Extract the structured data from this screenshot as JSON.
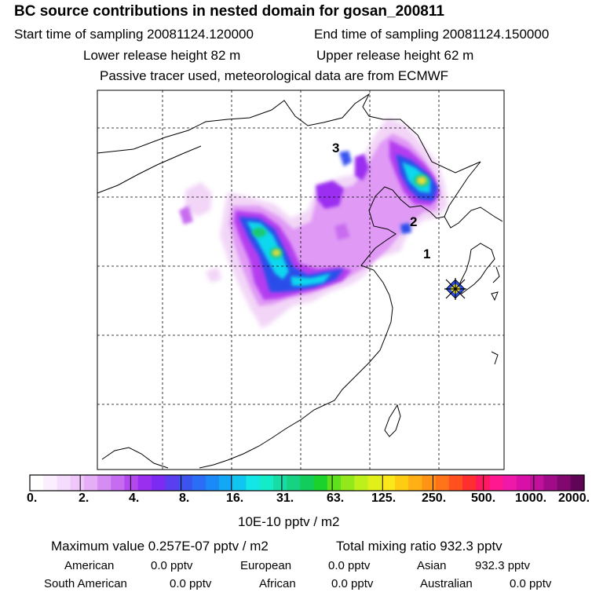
{
  "header": {
    "title": "BC  source contributions in nested domain for gosan_200811",
    "start_label": "Start time of sampling 20081124.120000",
    "end_label": "End time of sampling 20081124.150000",
    "lower_label": "Lower release height   82 m",
    "upper_label": "Upper release height   62 m",
    "info_label": "Passive tracer used, meteorological data are from ECMWF"
  },
  "map": {
    "markers": [
      "1",
      "2",
      "3"
    ],
    "colors": {
      "very_low": "#f2d5f7",
      "low": "#e09af5",
      "violet": "#b43cf0",
      "blue": "#2b4dea",
      "cyan": "#10d8ee",
      "green": "#1ec86e",
      "yellow": "#f4e41a"
    }
  },
  "legend": {
    "tick_labels": [
      "0.",
      "2.",
      "4.",
      "8.",
      "16.",
      "31.",
      "63.",
      "125.",
      "250.",
      "500.",
      "1000.",
      "2000."
    ],
    "colors": [
      "#ffffff",
      "#fbeefe",
      "#f6dcfc",
      "#f0c7fa",
      "#e6aef7",
      "#d58cf3",
      "#c56cf0",
      "#b248ee",
      "#9b2ff0",
      "#7c2cf2",
      "#5b3ef0",
      "#3b54f0",
      "#2b6df4",
      "#1b8af8",
      "#12a8f5",
      "#10c6ee",
      "#14e6e6",
      "#14ecc8",
      "#18dca6",
      "#16d282",
      "#12cc5c",
      "#1bd22c",
      "#5ee01c",
      "#92e81a",
      "#bef01c",
      "#e0f018",
      "#fce81a",
      "#ffcc14",
      "#ffb014",
      "#ff9414",
      "#ff7418",
      "#ff501e",
      "#ff2e30",
      "#ff1860",
      "#ff1890",
      "#f018a8",
      "#d810a8",
      "#c0109c",
      "#a00c88",
      "#80086e",
      "#600458"
    ],
    "units": "10E-10 pptv / m2"
  },
  "footer": {
    "max_value": "Maximum value  0.257E-07 pptv / m2",
    "total_mixing": "Total mixing ratio      932.3 pptv",
    "american_label": "American",
    "american_value": "0.0 pptv",
    "european_label": "European",
    "european_value": "0.0 pptv",
    "asian_label": "Asian",
    "asian_value": "932.3 pptv",
    "south_american_label": "South American",
    "south_american_value": "0.0 pptv",
    "african_label": "African",
    "african_value": "0.0 pptv",
    "australian_label": "Australian",
    "australian_value": "0.0 pptv"
  }
}
